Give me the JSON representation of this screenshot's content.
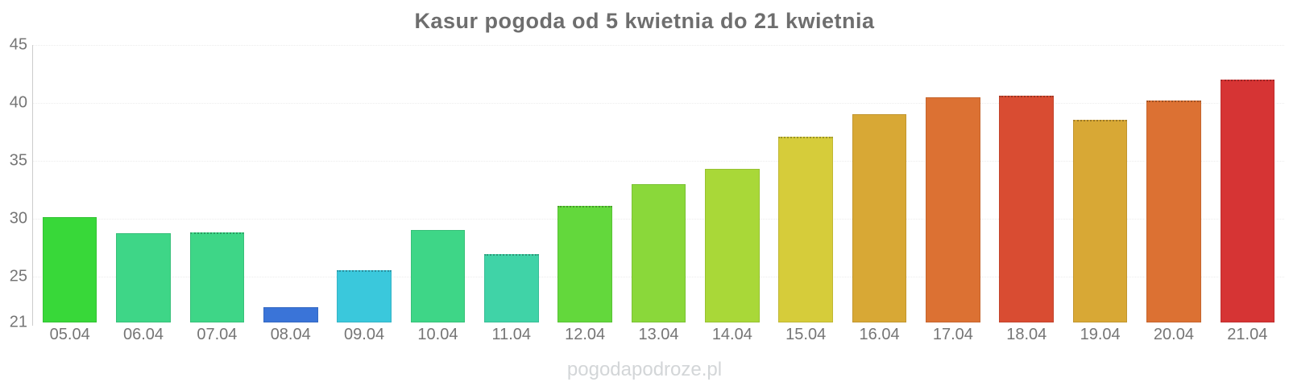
{
  "chart": {
    "title": "Kasur pogoda od 5 kwietnia do 21 kwietnia",
    "watermark": "pogodapodroze.pl"
  },
  "chart_data": {
    "type": "bar",
    "title": "Kasur pogoda od 5 kwietnia do 21 kwietnia",
    "xlabel": "",
    "ylabel": "",
    "ylim": [
      21,
      45
    ],
    "yticks": [
      21,
      25,
      30,
      35,
      40,
      45
    ],
    "grid": "horizontal-faint-dotted",
    "legend": "none",
    "categories": [
      "05.04",
      "06.04",
      "07.04",
      "08.04",
      "09.04",
      "10.04",
      "11.04",
      "12.04",
      "13.04",
      "14.04",
      "15.04",
      "16.04",
      "17.04",
      "18.04",
      "19.04",
      "20.04",
      "21.04"
    ],
    "values": [
      30.1,
      28.7,
      28.8,
      22.3,
      25.5,
      29.0,
      26.9,
      31.1,
      33.0,
      34.3,
      37.1,
      39.0,
      40.5,
      40.6,
      38.5,
      40.2,
      42.0
    ],
    "bar_colors": [
      "#38d839",
      "#3ed687",
      "#3ed687",
      "#3a74d8",
      "#3ac8dc",
      "#3ed687",
      "#40d3a7",
      "#63d83c",
      "#8ad83a",
      "#a9d838",
      "#d6cc3a",
      "#d8a835",
      "#dc7133",
      "#d94c32",
      "#d8a835",
      "#dc7133",
      "#d63434"
    ],
    "dotted_top": [
      false,
      false,
      true,
      false,
      true,
      false,
      true,
      true,
      false,
      false,
      true,
      false,
      false,
      true,
      true,
      true,
      true
    ],
    "axis_color": "#cccccc",
    "gridline_color": "#ececec",
    "label_color": "#757575",
    "title_color": "#6e6e6e",
    "watermark_color": "#d3d6d8"
  }
}
